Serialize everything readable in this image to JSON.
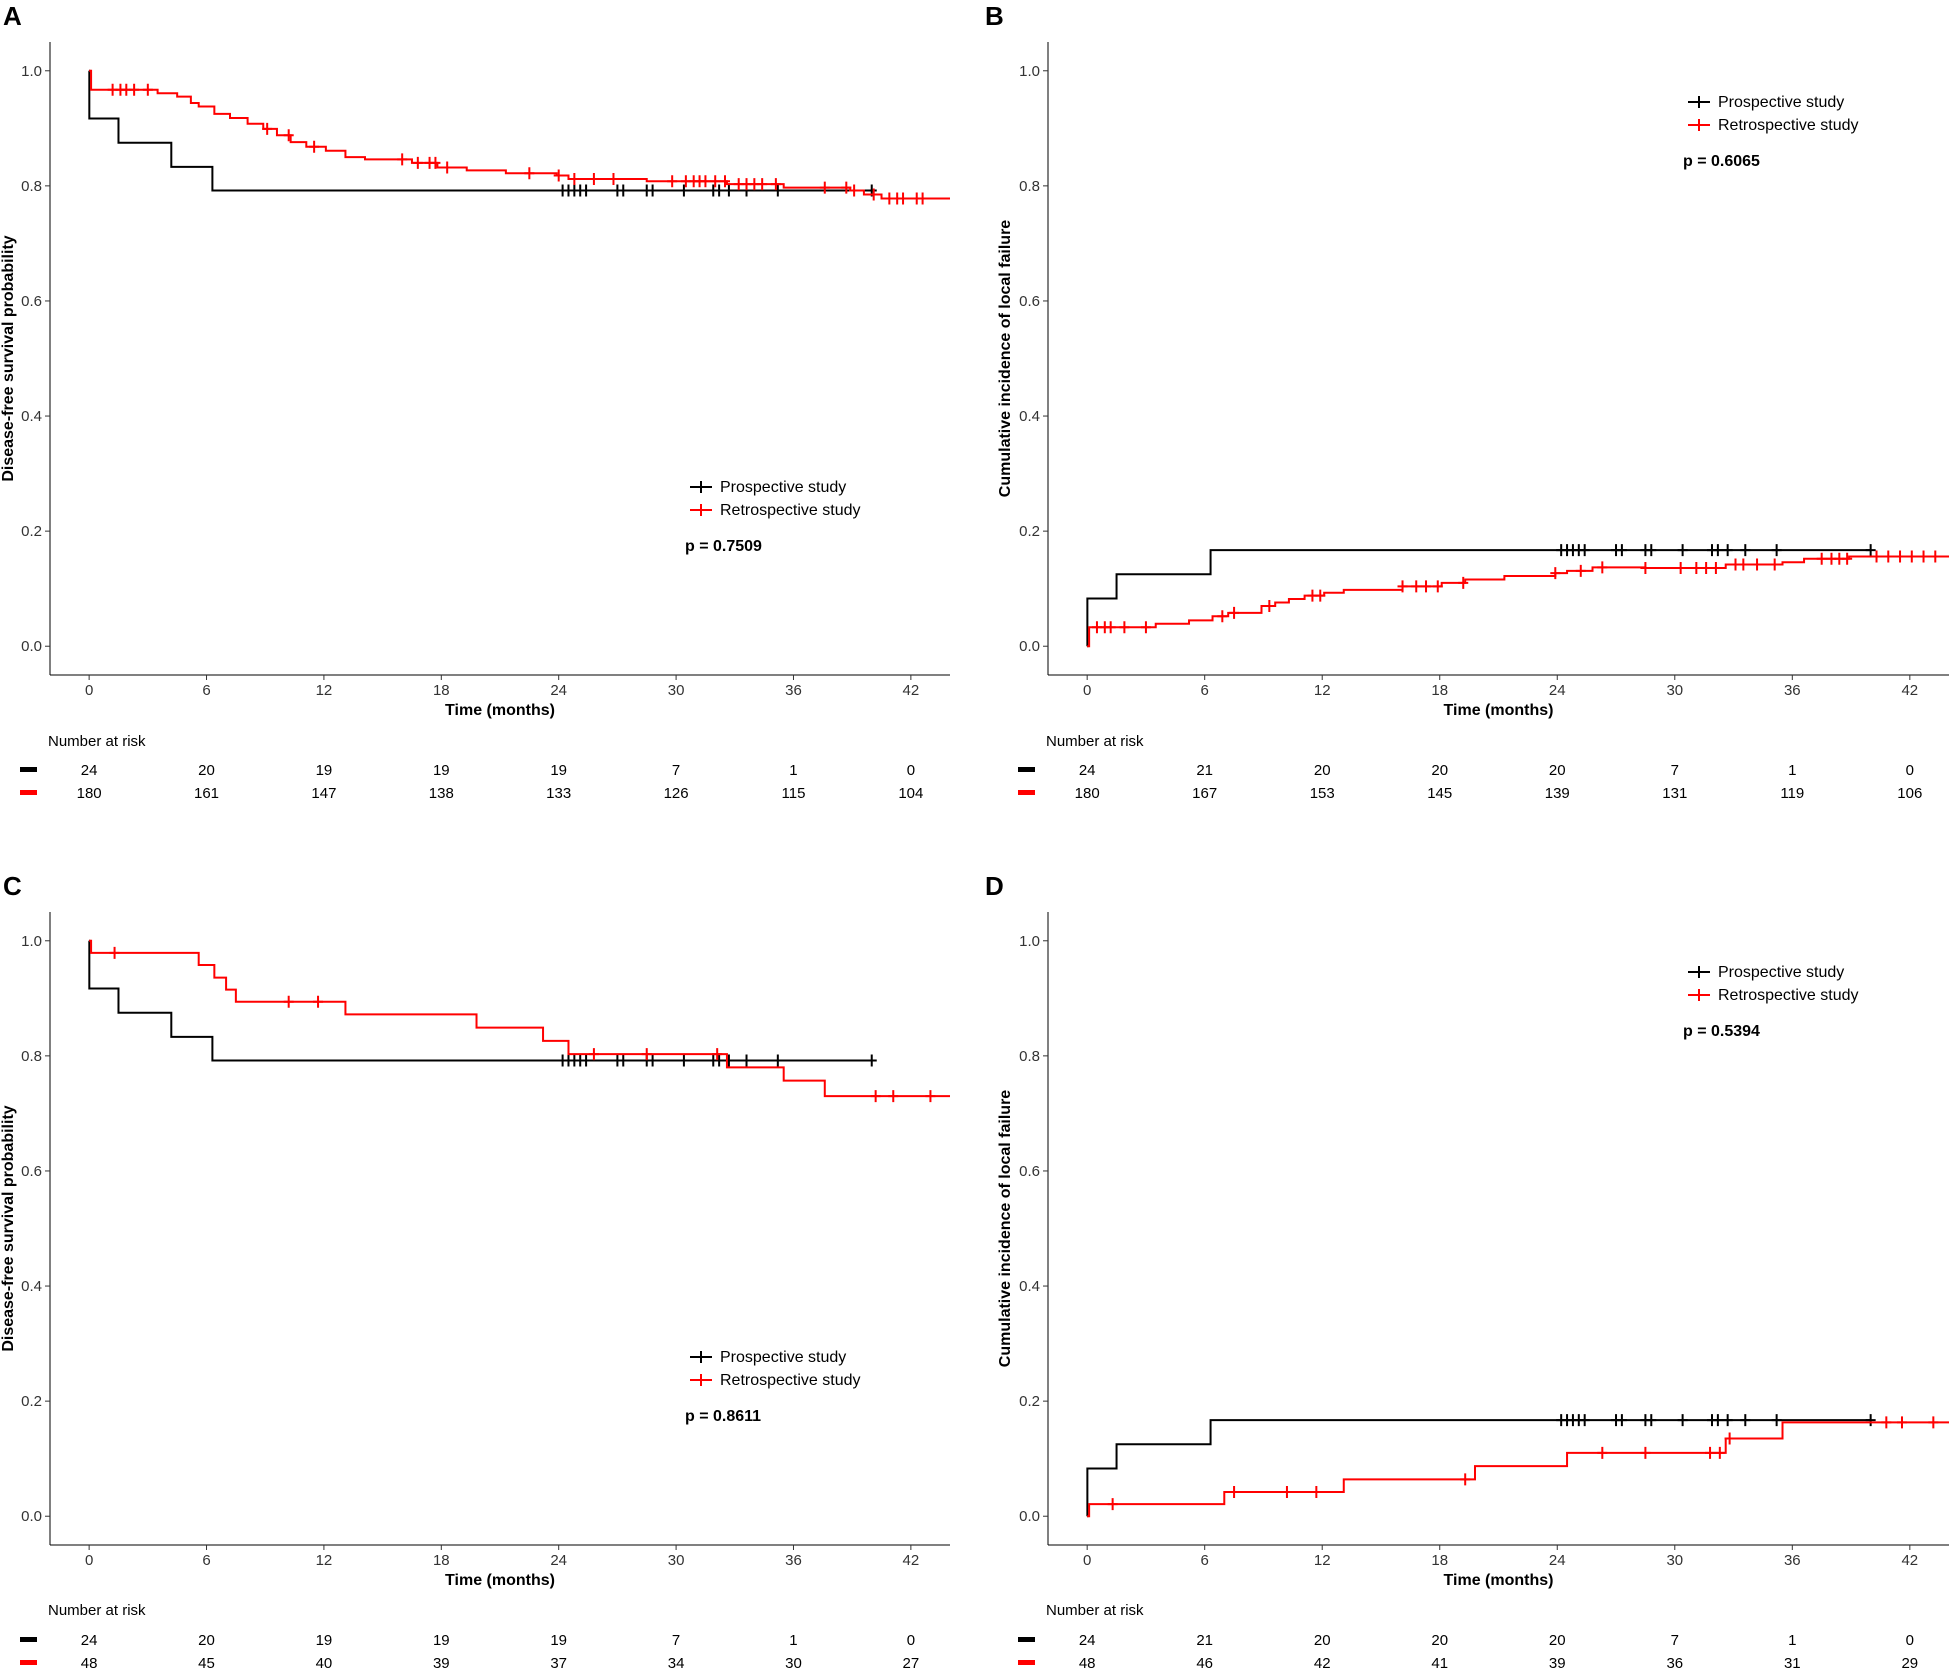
{
  "chart_data": [
    {
      "panel": "A",
      "type": "line",
      "subtype": "kaplan-meier",
      "ylabel": "Disease-free survival probability",
      "xlabel": "Time (months)",
      "xlim": [
        -2,
        44
      ],
      "ylim": [
        -0.05,
        1.05
      ],
      "x_ticks": [
        0,
        6,
        12,
        18,
        24,
        30,
        36,
        42
      ],
      "y_ticks": [
        0.0,
        0.2,
        0.4,
        0.6,
        0.8,
        1.0
      ],
      "y_tick_labels": [
        "0.0",
        "0.2",
        "0.4",
        "0.6",
        "0.8",
        "1.0"
      ],
      "legend_position": "lower-right",
      "p_value": "p = 0.7509",
      "series": [
        {
          "name": "Prospective study",
          "color": "#000000",
          "steps": [
            [
              0,
              1.0
            ],
            [
              0.01,
              0.917
            ],
            [
              1.5,
              0.875
            ],
            [
              4.2,
              0.833
            ],
            [
              6.3,
              0.792
            ],
            [
              40,
              0.792
            ]
          ],
          "censor_x": [
            24.2,
            24.5,
            24.8,
            25.1,
            25.4,
            27,
            27.3,
            28.5,
            28.8,
            30.4,
            31.9,
            32.2,
            32.7,
            33.6,
            35.2,
            40
          ]
        },
        {
          "name": "Retrospective study",
          "color": "#ff0000",
          "steps": [
            [
              0,
              1.0
            ],
            [
              0.1,
              0.967
            ],
            [
              3.5,
              0.961
            ],
            [
              4.5,
              0.955
            ],
            [
              5.2,
              0.944
            ],
            [
              5.6,
              0.938
            ],
            [
              6.4,
              0.925
            ],
            [
              7.2,
              0.918
            ],
            [
              8.1,
              0.908
            ],
            [
              8.9,
              0.899
            ],
            [
              9.6,
              0.888
            ],
            [
              10.3,
              0.876
            ],
            [
              11.1,
              0.868
            ],
            [
              12.1,
              0.861
            ],
            [
              13.1,
              0.85
            ],
            [
              14.1,
              0.846
            ],
            [
              16.5,
              0.84
            ],
            [
              17.8,
              0.832
            ],
            [
              19.3,
              0.827
            ],
            [
              21.3,
              0.822
            ],
            [
              23.9,
              0.818
            ],
            [
              24.5,
              0.812
            ],
            [
              28.5,
              0.808
            ],
            [
              32.6,
              0.803
            ],
            [
              35.5,
              0.797
            ],
            [
              38.9,
              0.792
            ],
            [
              39.6,
              0.785
            ],
            [
              40.5,
              0.778
            ],
            [
              44,
              0.778
            ]
          ],
          "censor_x": [
            1.2,
            1.6,
            1.9,
            2.3,
            3,
            9.1,
            10.2,
            11.5,
            16,
            16.8,
            17.4,
            17.7,
            18.3,
            22.5,
            24,
            24.8,
            25.8,
            26.8,
            29.8,
            30.5,
            30.9,
            31.2,
            31.5,
            32,
            32.5,
            33.2,
            33.6,
            34,
            34.4,
            35.1,
            37.6,
            38.7,
            39.1,
            40.1,
            40.9,
            41.3,
            41.6,
            42.3,
            42.6
          ]
        }
      ],
      "risk_table": {
        "title": "Number at risk",
        "times": [
          0,
          6,
          12,
          18,
          24,
          30,
          36,
          42
        ],
        "rows": [
          {
            "color": "#000000",
            "values": [
              "24",
              "20",
              "19",
              "19",
              "19",
              "7",
              "1",
              "0"
            ]
          },
          {
            "color": "#ff0000",
            "values": [
              "180",
              "161",
              "147",
              "138",
              "133",
              "126",
              "115",
              "104"
            ]
          }
        ]
      }
    },
    {
      "panel": "B",
      "type": "line",
      "subtype": "cumulative-incidence",
      "ylabel": "Cumulative incidence of local failure",
      "xlabel": "Time (months)",
      "xlim": [
        -2,
        44
      ],
      "ylim": [
        -0.05,
        1.05
      ],
      "x_ticks": [
        0,
        6,
        12,
        18,
        24,
        30,
        36,
        42
      ],
      "y_ticks": [
        0.0,
        0.2,
        0.4,
        0.6,
        0.8,
        1.0
      ],
      "y_tick_labels": [
        "0.0",
        "0.2",
        "0.4",
        "0.6",
        "0.8",
        "1.0"
      ],
      "legend_position": "top-right",
      "p_value": "p = 0.6065",
      "series": [
        {
          "name": "Prospective study",
          "color": "#000000",
          "steps": [
            [
              0,
              0.0
            ],
            [
              0.01,
              0.083
            ],
            [
              1.5,
              0.125
            ],
            [
              6.3,
              0.167
            ],
            [
              40,
              0.167
            ]
          ],
          "censor_x": [
            24.2,
            24.5,
            24.8,
            25.1,
            25.4,
            27,
            27.3,
            28.5,
            28.8,
            30.4,
            31.9,
            32.2,
            32.7,
            33.6,
            35.2,
            40
          ]
        },
        {
          "name": "Retrospective study",
          "color": "#ff0000",
          "steps": [
            [
              0,
              0.0
            ],
            [
              0.1,
              0.033
            ],
            [
              2,
              0.033
            ],
            [
              3.5,
              0.039
            ],
            [
              5.2,
              0.045
            ],
            [
              6.4,
              0.052
            ],
            [
              7.2,
              0.058
            ],
            [
              8.9,
              0.07
            ],
            [
              9.6,
              0.076
            ],
            [
              10.3,
              0.082
            ],
            [
              11.1,
              0.088
            ],
            [
              12.1,
              0.093
            ],
            [
              13.1,
              0.098
            ],
            [
              16.1,
              0.104
            ],
            [
              18.1,
              0.11
            ],
            [
              19.3,
              0.116
            ],
            [
              21.3,
              0.122
            ],
            [
              23.9,
              0.127
            ],
            [
              24.5,
              0.131
            ],
            [
              25.8,
              0.137
            ],
            [
              28.5,
              0.136
            ],
            [
              32.6,
              0.142
            ],
            [
              35.5,
              0.146
            ],
            [
              36.6,
              0.152
            ],
            [
              38.9,
              0.156
            ],
            [
              44,
              0.156
            ]
          ],
          "censor_x": [
            0.5,
            0.9,
            1.2,
            1.9,
            3,
            6.9,
            7.5,
            9.3,
            11.5,
            11.9,
            16.1,
            16.8,
            17.3,
            17.9,
            19.2,
            23.9,
            25.2,
            26.3,
            28.5,
            30.3,
            31.1,
            31.6,
            32.1,
            33.1,
            33.5,
            34.2,
            35.1,
            37.5,
            38,
            38.4,
            38.8,
            40.3,
            40.9,
            41.5,
            42.1,
            42.7,
            43.3
          ]
        }
      ],
      "risk_table": {
        "title": "Number at risk",
        "times": [
          0,
          6,
          12,
          18,
          24,
          30,
          36,
          42
        ],
        "rows": [
          {
            "color": "#000000",
            "values": [
              "24",
              "21",
              "20",
              "20",
              "20",
              "7",
              "1",
              "0"
            ]
          },
          {
            "color": "#ff0000",
            "values": [
              "180",
              "167",
              "153",
              "145",
              "139",
              "131",
              "119",
              "106"
            ]
          }
        ]
      }
    },
    {
      "panel": "C",
      "type": "line",
      "subtype": "kaplan-meier",
      "ylabel": "Disease-free survival probability",
      "xlabel": "Time (months)",
      "xlim": [
        -2,
        44
      ],
      "ylim": [
        -0.05,
        1.05
      ],
      "x_ticks": [
        0,
        6,
        12,
        18,
        24,
        30,
        36,
        42
      ],
      "y_ticks": [
        0.0,
        0.2,
        0.4,
        0.6,
        0.8,
        1.0
      ],
      "y_tick_labels": [
        "0.0",
        "0.2",
        "0.4",
        "0.6",
        "0.8",
        "1.0"
      ],
      "legend_position": "lower-right",
      "p_value": "p = 0.8611",
      "series": [
        {
          "name": "Prospective study",
          "color": "#000000",
          "steps": [
            [
              0,
              1.0
            ],
            [
              0.01,
              0.917
            ],
            [
              1.5,
              0.875
            ],
            [
              4.2,
              0.833
            ],
            [
              6.3,
              0.792
            ],
            [
              40,
              0.792
            ]
          ],
          "censor_x": [
            24.2,
            24.5,
            24.8,
            25.1,
            25.4,
            27,
            27.3,
            28.5,
            28.8,
            30.4,
            31.9,
            32.2,
            32.7,
            33.6,
            35.2,
            40
          ]
        },
        {
          "name": "Retrospective study",
          "color": "#ff0000",
          "steps": [
            [
              0,
              1.0
            ],
            [
              0.1,
              0.979
            ],
            [
              5.6,
              0.958
            ],
            [
              6.4,
              0.936
            ],
            [
              7,
              0.915
            ],
            [
              7.5,
              0.894
            ],
            [
              13.1,
              0.872
            ],
            [
              19.8,
              0.849
            ],
            [
              23.2,
              0.826
            ],
            [
              24.5,
              0.803
            ],
            [
              32.6,
              0.78
            ],
            [
              35.5,
              0.757
            ],
            [
              37.6,
              0.73
            ],
            [
              44,
              0.73
            ]
          ],
          "censor_x": [
            1.3,
            10.2,
            11.7,
            25.8,
            28.5,
            32.1,
            40.2,
            41.1,
            43
          ]
        }
      ],
      "risk_table": {
        "title": "Number at risk",
        "times": [
          0,
          6,
          12,
          18,
          24,
          30,
          36,
          42
        ],
        "rows": [
          {
            "color": "#000000",
            "values": [
              "24",
              "20",
              "19",
              "19",
              "19",
              "7",
              "1",
              "0"
            ]
          },
          {
            "color": "#ff0000",
            "values": [
              "48",
              "45",
              "40",
              "39",
              "37",
              "34",
              "30",
              "27"
            ]
          }
        ]
      }
    },
    {
      "panel": "D",
      "type": "line",
      "subtype": "cumulative-incidence",
      "ylabel": "Cumulative incidence of local failure",
      "xlabel": "Time (months)",
      "xlim": [
        -2,
        44
      ],
      "ylim": [
        -0.05,
        1.05
      ],
      "x_ticks": [
        0,
        6,
        12,
        18,
        24,
        30,
        36,
        42
      ],
      "y_ticks": [
        0.0,
        0.2,
        0.4,
        0.6,
        0.8,
        1.0
      ],
      "y_tick_labels": [
        "0.0",
        "0.2",
        "0.4",
        "0.6",
        "0.8",
        "1.0"
      ],
      "legend_position": "top-right",
      "p_value": "p = 0.5394",
      "series": [
        {
          "name": "Prospective study",
          "color": "#000000",
          "steps": [
            [
              0,
              0.0
            ],
            [
              0.01,
              0.083
            ],
            [
              1.5,
              0.125
            ],
            [
              6.3,
              0.167
            ],
            [
              40,
              0.167
            ]
          ],
          "censor_x": [
            24.2,
            24.5,
            24.8,
            25.1,
            25.4,
            27,
            27.3,
            28.5,
            28.8,
            30.4,
            31.9,
            32.2,
            32.7,
            33.6,
            35.2,
            40
          ]
        },
        {
          "name": "Retrospective study",
          "color": "#ff0000",
          "steps": [
            [
              0,
              0.0
            ],
            [
              0.1,
              0.021
            ],
            [
              7,
              0.042
            ],
            [
              13.1,
              0.064
            ],
            [
              19.8,
              0.087
            ],
            [
              24.5,
              0.11
            ],
            [
              32.6,
              0.135
            ],
            [
              35.5,
              0.163
            ],
            [
              44,
              0.163
            ]
          ],
          "censor_x": [
            1.3,
            7.5,
            10.2,
            11.7,
            19.3,
            26.3,
            28.5,
            31.8,
            32.3,
            32.8,
            40.8,
            41.6,
            43.2
          ]
        }
      ],
      "risk_table": {
        "title": "Number at risk",
        "times": [
          0,
          6,
          12,
          18,
          24,
          30,
          36,
          42
        ],
        "rows": [
          {
            "color": "#000000",
            "values": [
              "24",
              "21",
              "20",
              "20",
              "20",
              "7",
              "1",
              "0"
            ]
          },
          {
            "color": "#ff0000",
            "values": [
              "48",
              "46",
              "42",
              "41",
              "39",
              "36",
              "31",
              "29"
            ]
          }
        ]
      }
    }
  ]
}
